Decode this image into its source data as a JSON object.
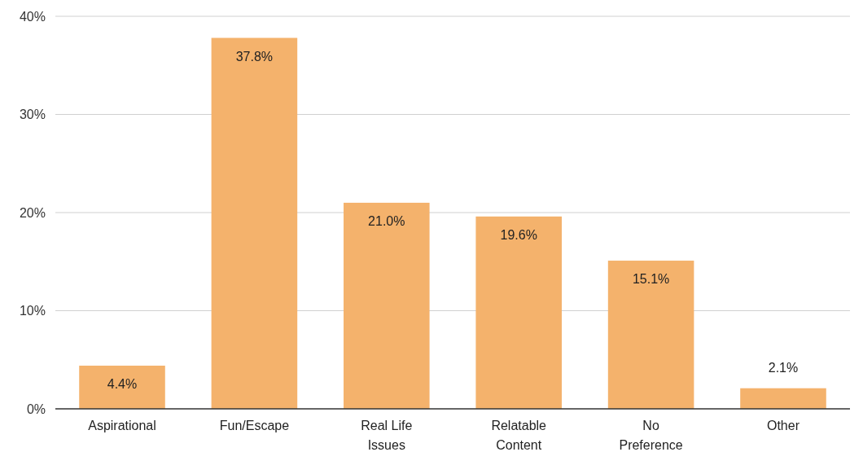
{
  "chart_data": {
    "type": "bar",
    "categories": [
      "Aspirational",
      "Fun/Escape",
      "Real Life Issues",
      "Relatable Content",
      "No Preference",
      "Other"
    ],
    "values": [
      4.4,
      37.8,
      21.0,
      19.6,
      15.1,
      2.1
    ],
    "value_labels": [
      "4.4%",
      "37.8%",
      "21.0%",
      "19.6%",
      "15.1%",
      "2.1%"
    ],
    "color": "#f4b26c",
    "ylim": [
      0,
      40
    ],
    "yticks": [
      {
        "value": 0,
        "label": "0%"
      },
      {
        "value": 10,
        "label": "10%"
      },
      {
        "value": 20,
        "label": "20%"
      },
      {
        "value": 30,
        "label": "30%"
      },
      {
        "value": 40,
        "label": "40%"
      }
    ],
    "grid": "y"
  }
}
